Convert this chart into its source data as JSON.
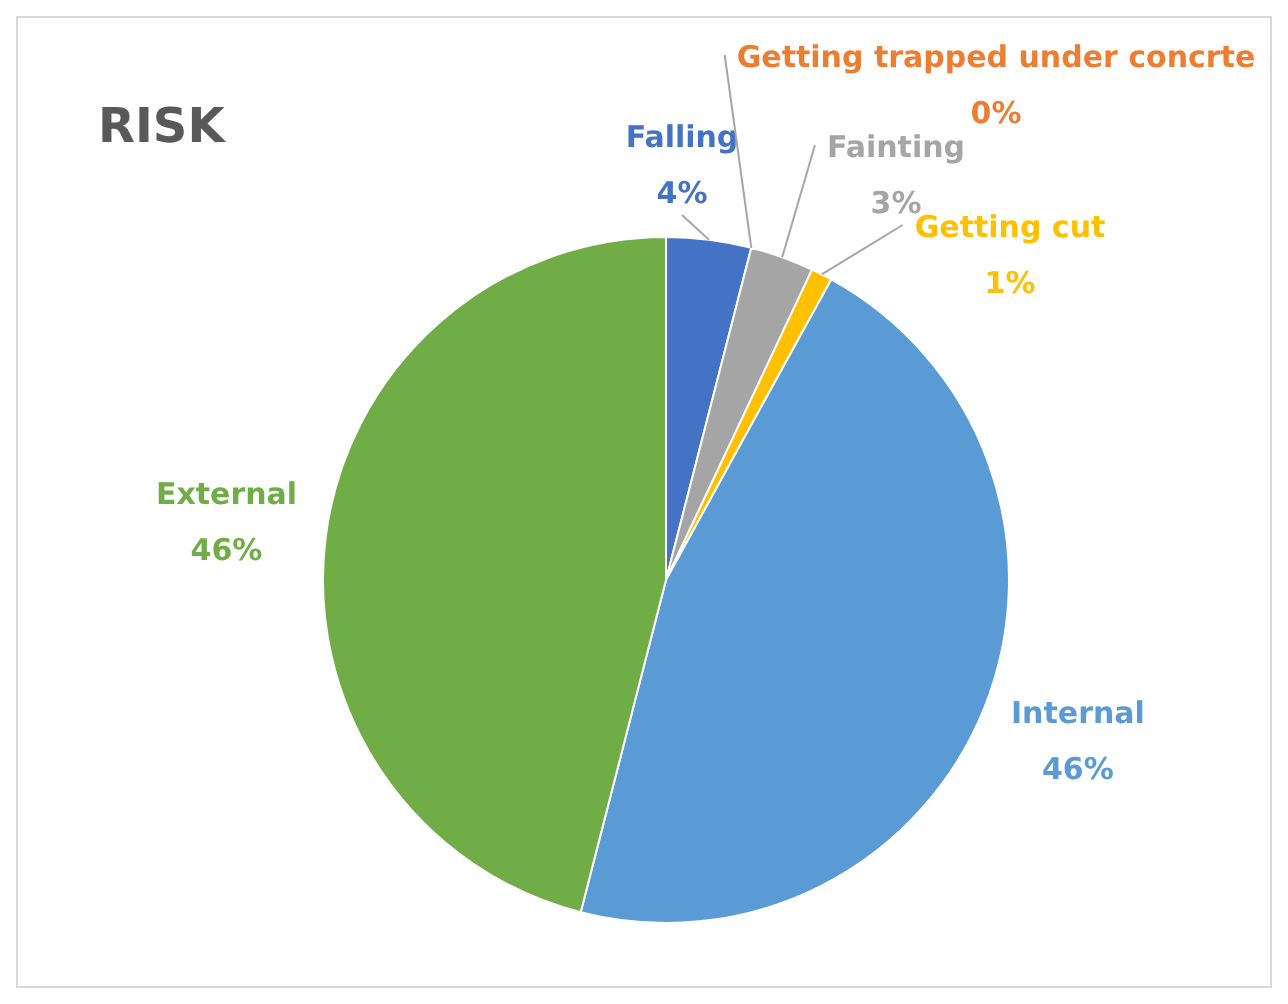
{
  "chart_data": {
    "type": "pie",
    "title": "RISK",
    "categories": [
      "Falling",
      "Getting trapped under concrte",
      "Fainting",
      "Getting cut",
      "Internal",
      "External"
    ],
    "values": [
      4,
      0,
      3,
      1,
      46,
      46
    ],
    "colors": [
      "#4472c4",
      "#ed7d31",
      "#a5a5a5",
      "#ffc000",
      "#5b9bd5",
      "#70ad47"
    ],
    "value_labels": [
      "4%",
      "0%",
      "3%",
      "1%",
      "46%",
      "46%"
    ],
    "legend": false
  }
}
